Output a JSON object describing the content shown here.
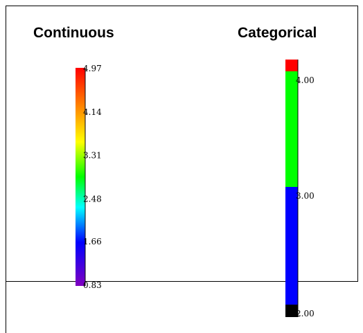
{
  "headings": {
    "continuous": "Continuous",
    "categorical": "Categorical"
  },
  "continuous_legend": {
    "range": [
      0.83,
      4.97
    ],
    "tick_labels": [
      "4.97",
      "4.14",
      "3.31",
      "2.48",
      "1.66",
      "0.83"
    ],
    "tick_values": [
      4.97,
      4.14,
      3.31,
      2.48,
      1.66,
      0.83
    ],
    "gradient_colors_top_to_bottom": [
      "#ff0000",
      "#ff8000",
      "#ffff00",
      "#00ff00",
      "#00ffff",
      "#0000ff",
      "#8000c0"
    ]
  },
  "categorical_legend": {
    "range": [
      2.0,
      4.0
    ],
    "tick_labels": [
      "4.00",
      "3.00",
      "2.00"
    ],
    "tick_values": [
      4.0,
      3.0,
      2.0
    ],
    "bands": [
      {
        "color": "#ff0000"
      },
      {
        "color": "#00ff00"
      },
      {
        "color": "#0000ff"
      },
      {
        "color": "#000000"
      }
    ]
  }
}
